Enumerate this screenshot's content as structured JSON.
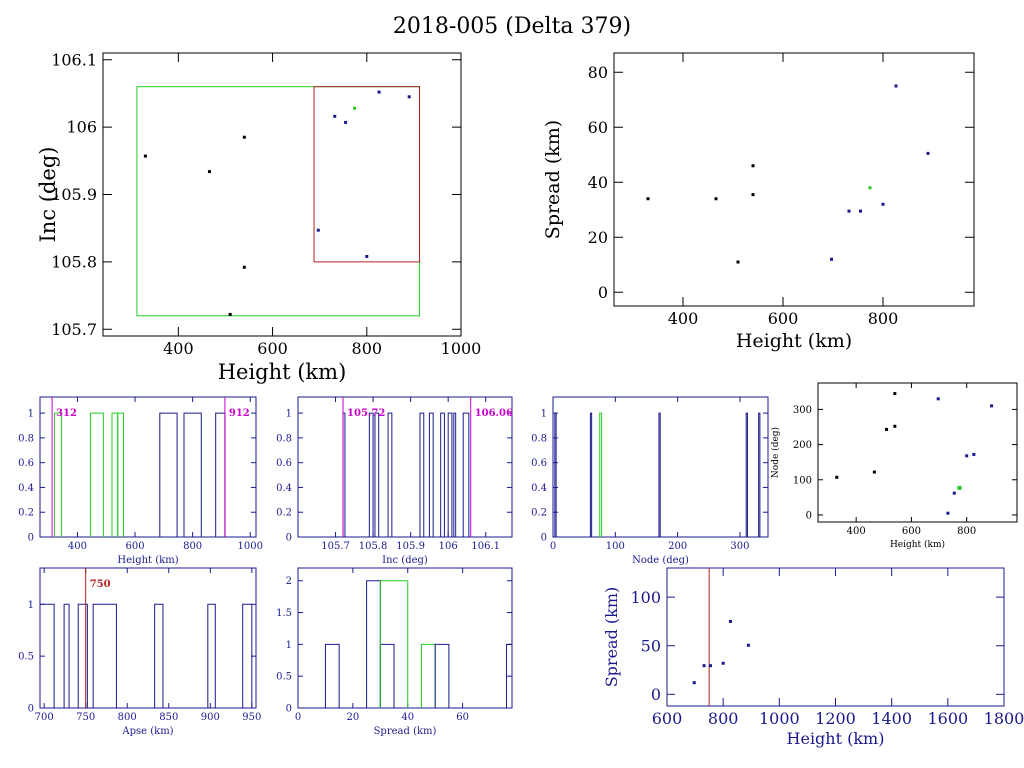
{
  "title": "2018-005 (Delta 379)",
  "colors": {
    "black": "#000000",
    "blue": "#1a1a8c",
    "green": "#22cc22",
    "red": "#b22222",
    "magenta": "#cc00cc"
  },
  "chart_data": [
    {
      "id": "p1",
      "type": "scatter",
      "xlabel": "Height (km)",
      "ylabel": "Inc (deg)",
      "xlim": [
        240,
        1000
      ],
      "ylim": [
        105.69,
        106.11
      ],
      "xticks": [
        400,
        600,
        800,
        1000
      ],
      "yticks": [
        105.7,
        105.8,
        105.9,
        106,
        106.1
      ],
      "boxes": [
        {
          "color": "green",
          "x": [
            312,
            912
          ],
          "y": [
            105.72,
            106.06
          ]
        },
        {
          "color": "red",
          "x": [
            688,
            912
          ],
          "y": [
            105.8,
            106.06
          ]
        }
      ],
      "points": [
        {
          "x": 330,
          "y": 105.957,
          "c": "black"
        },
        {
          "x": 466,
          "y": 105.934,
          "c": "black"
        },
        {
          "x": 510,
          "y": 105.722,
          "c": "black"
        },
        {
          "x": 540,
          "y": 105.985,
          "c": "black"
        },
        {
          "x": 540,
          "y": 105.792,
          "c": "black"
        },
        {
          "x": 697,
          "y": 105.847,
          "c": "blue"
        },
        {
          "x": 732,
          "y": 106.016,
          "c": "blue"
        },
        {
          "x": 755,
          "y": 106.007,
          "c": "blue"
        },
        {
          "x": 774,
          "y": 106.028,
          "c": "green"
        },
        {
          "x": 800,
          "y": 105.808,
          "c": "blue"
        },
        {
          "x": 826,
          "y": 106.052,
          "c": "blue"
        },
        {
          "x": 890,
          "y": 106.045,
          "c": "blue"
        }
      ]
    },
    {
      "id": "p2",
      "type": "scatter",
      "xlabel": "Height (km)",
      "ylabel": "Spread (km)",
      "xlim": [
        262,
        982
      ],
      "ylim": [
        -5,
        87
      ],
      "xticks": [
        400,
        600,
        800
      ],
      "yticks": [
        0,
        20,
        40,
        60,
        80
      ],
      "points": [
        {
          "x": 330,
          "y": 34,
          "c": "black"
        },
        {
          "x": 466,
          "y": 34,
          "c": "black"
        },
        {
          "x": 510,
          "y": 11,
          "c": "black"
        },
        {
          "x": 540,
          "y": 46,
          "c": "black"
        },
        {
          "x": 540,
          "y": 35.5,
          "c": "black"
        },
        {
          "x": 697,
          "y": 12,
          "c": "blue"
        },
        {
          "x": 732,
          "y": 29.5,
          "c": "blue"
        },
        {
          "x": 755,
          "y": 29.5,
          "c": "blue"
        },
        {
          "x": 774,
          "y": 38,
          "c": "green"
        },
        {
          "x": 800,
          "y": 32,
          "c": "blue"
        },
        {
          "x": 826,
          "y": 75,
          "c": "blue"
        },
        {
          "x": 890,
          "y": 50.5,
          "c": "blue"
        }
      ]
    },
    {
      "id": "h1",
      "type": "bar",
      "xlabel": "Height (km)",
      "ylabel": "",
      "xlim": [
        270,
        1020
      ],
      "ylim": [
        0,
        1.13
      ],
      "xticks": [
        400,
        600,
        800,
        1000
      ],
      "yticks": [
        0,
        0.2,
        0.4,
        0.6,
        0.8,
        1
      ],
      "markers": [
        {
          "x": 312,
          "label": "312",
          "color": "magenta",
          "side": "right"
        },
        {
          "x": 912,
          "label": "912",
          "color": "magenta",
          "side": "right"
        }
      ],
      "bars": [
        {
          "x0": 320,
          "x1": 345,
          "y": 1,
          "c": "green"
        },
        {
          "x0": 445,
          "x1": 490,
          "y": 1,
          "c": "green"
        },
        {
          "x0": 520,
          "x1": 540,
          "y": 1,
          "c": "green"
        },
        {
          "x0": 540,
          "x1": 560,
          "y": 1,
          "c": "green"
        },
        {
          "x0": 686,
          "x1": 746,
          "y": 1,
          "c": "blue"
        },
        {
          "x0": 770,
          "x1": 830,
          "y": 1,
          "c": "blue"
        },
        {
          "x0": 880,
          "x1": 912,
          "y": 1,
          "c": "blue"
        }
      ]
    },
    {
      "id": "h2",
      "type": "bar",
      "xlabel": "Inc (deg)",
      "ylabel": "",
      "xlim": [
        105.6,
        106.17
      ],
      "ylim": [
        0,
        1.13
      ],
      "xticks": [
        105.7,
        105.8,
        105.9,
        106,
        106.1
      ],
      "yticks": [
        0,
        0.2,
        0.4,
        0.6,
        0.8,
        1
      ],
      "markers": [
        {
          "x": 105.72,
          "label": "105.72",
          "color": "magenta",
          "side": "right"
        },
        {
          "x": 106.06,
          "label": "106.06",
          "color": "magenta",
          "side": "right"
        }
      ],
      "bars": [
        {
          "x0": 105.72,
          "x1": 105.725,
          "y": 1,
          "c": "blue"
        },
        {
          "x0": 105.79,
          "x1": 105.8,
          "y": 1,
          "c": "blue"
        },
        {
          "x0": 105.805,
          "x1": 105.815,
          "y": 1,
          "c": "blue"
        },
        {
          "x0": 105.84,
          "x1": 105.85,
          "y": 1,
          "c": "blue"
        },
        {
          "x0": 105.925,
          "x1": 105.935,
          "y": 1,
          "c": "blue"
        },
        {
          "x0": 105.95,
          "x1": 105.96,
          "y": 1,
          "c": "blue"
        },
        {
          "x0": 105.98,
          "x1": 105.99,
          "y": 1,
          "c": "blue"
        },
        {
          "x0": 106.0,
          "x1": 106.01,
          "y": 1,
          "c": "blue"
        },
        {
          "x0": 106.015,
          "x1": 106.02,
          "y": 1,
          "c": "blue"
        },
        {
          "x0": 106.04,
          "x1": 106.055,
          "y": 1,
          "c": "blue"
        }
      ]
    },
    {
      "id": "h3",
      "type": "bar",
      "xlabel": "Node (deg)",
      "ylabel": "",
      "xlim": [
        0,
        345
      ],
      "ylim": [
        0,
        1.13
      ],
      "xticks": [
        0,
        100,
        200,
        300
      ],
      "yticks": [
        0,
        0.2,
        0.4,
        0.6,
        0.8,
        1
      ],
      "bars": [
        {
          "x0": 3,
          "x1": 5,
          "y": 1,
          "c": "blue"
        },
        {
          "x0": 60,
          "x1": 62,
          "y": 1,
          "c": "blue"
        },
        {
          "x0": 75,
          "x1": 78,
          "y": 1,
          "c": "green"
        },
        {
          "x0": 170,
          "x1": 172,
          "y": 1,
          "c": "blue"
        },
        {
          "x0": 310,
          "x1": 312,
          "y": 1,
          "c": "blue"
        },
        {
          "x0": 330,
          "x1": 332,
          "y": 1,
          "c": "blue"
        }
      ]
    },
    {
      "id": "p3",
      "type": "scatter",
      "xlabel": "Height (km)",
      "ylabel": "Node (deg)",
      "xlim": [
        262,
        982
      ],
      "ylim": [
        -20,
        375
      ],
      "xticks": [
        400,
        600,
        800
      ],
      "yticks": [
        0,
        100,
        200,
        300
      ],
      "points": [
        {
          "x": 330,
          "y": 107,
          "c": "black"
        },
        {
          "x": 466,
          "y": 122,
          "c": "black"
        },
        {
          "x": 510,
          "y": 243,
          "c": "black"
        },
        {
          "x": 540,
          "y": 345,
          "c": "black"
        },
        {
          "x": 540,
          "y": 252,
          "c": "black"
        },
        {
          "x": 697,
          "y": 330,
          "c": "blue"
        },
        {
          "x": 732,
          "y": 5,
          "c": "blue"
        },
        {
          "x": 755,
          "y": 62,
          "c": "blue"
        },
        {
          "x": 774,
          "y": 77,
          "c": "green"
        },
        {
          "x": 800,
          "y": 168,
          "c": "blue"
        },
        {
          "x": 826,
          "y": 172,
          "c": "blue"
        },
        {
          "x": 890,
          "y": 310,
          "c": "blue"
        }
      ]
    },
    {
      "id": "h4",
      "type": "bar",
      "xlabel": "Apse (km)",
      "ylabel": "",
      "xlim": [
        695,
        955
      ],
      "ylim": [
        0,
        1.35
      ],
      "xticks": [
        700,
        750,
        800,
        850,
        900,
        950
      ],
      "yticks": [
        0,
        0.5,
        1
      ],
      "markers": [
        {
          "x": 750,
          "label": "750",
          "color": "red",
          "side": "right"
        }
      ],
      "bars": [
        {
          "x0": 695,
          "x1": 712,
          "y": 1,
          "c": "blue"
        },
        {
          "x0": 724,
          "x1": 730,
          "y": 1,
          "c": "blue"
        },
        {
          "x0": 741,
          "x1": 752,
          "y": 1,
          "c": "blue"
        },
        {
          "x0": 759,
          "x1": 787,
          "y": 1,
          "c": "blue"
        },
        {
          "x0": 833,
          "x1": 843,
          "y": 1,
          "c": "blue"
        },
        {
          "x0": 897,
          "x1": 906,
          "y": 1,
          "c": "blue"
        },
        {
          "x0": 939,
          "x1": 950,
          "y": 1,
          "c": "blue"
        }
      ]
    },
    {
      "id": "h5",
      "type": "bar",
      "xlabel": "Spread (km)",
      "ylabel": "",
      "xlim": [
        0,
        78
      ],
      "ylim": [
        0,
        2.2
      ],
      "xticks": [
        0,
        20,
        40,
        60
      ],
      "yticks": [
        0,
        0.5,
        1,
        1.5,
        2
      ],
      "bars": [
        {
          "x0": 10,
          "x1": 15,
          "y": 1,
          "c": "blue"
        },
        {
          "x0": 25,
          "x1": 30,
          "y": 2,
          "c": "blue"
        },
        {
          "x0": 30,
          "x1": 35,
          "y": 1,
          "c": "blue"
        },
        {
          "x0": 30,
          "x1": 40,
          "y": 2,
          "c": "green"
        },
        {
          "x0": 45,
          "x1": 50,
          "y": 1,
          "c": "green"
        },
        {
          "x0": 50,
          "x1": 55,
          "y": 1,
          "c": "blue"
        },
        {
          "x0": 76,
          "x1": 78,
          "y": 1,
          "c": "blue"
        }
      ]
    },
    {
      "id": "p4",
      "type": "scatter",
      "xlabel": "Height (km)",
      "ylabel": "Spread (km)",
      "xlim": [
        600,
        1800
      ],
      "ylim": [
        -12,
        130
      ],
      "xticks": [
        600,
        800,
        1000,
        1200,
        1400,
        1600,
        1800
      ],
      "yticks": [
        0,
        50,
        100
      ],
      "vline": {
        "x": 750,
        "color": "red"
      },
      "points": [
        {
          "x": 697,
          "y": 12,
          "c": "blue"
        },
        {
          "x": 732,
          "y": 29.5,
          "c": "blue"
        },
        {
          "x": 755,
          "y": 29.5,
          "c": "blue"
        },
        {
          "x": 800,
          "y": 32,
          "c": "blue"
        },
        {
          "x": 826,
          "y": 75,
          "c": "blue"
        },
        {
          "x": 890,
          "y": 50.5,
          "c": "blue"
        }
      ]
    }
  ]
}
